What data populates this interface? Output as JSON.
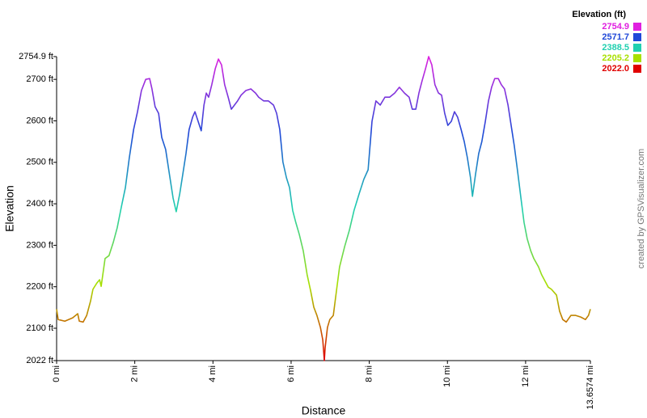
{
  "chart_data": {
    "type": "line",
    "y_label": "Elevation",
    "x_label": "Distance",
    "credit": "created by GPSVisualizer.com",
    "legend_title": "Elevation (ft)",
    "color_stops": [
      {
        "value": 2754.9,
        "color": "#e020e0"
      },
      {
        "value": 2571.7,
        "color": "#2048d8"
      },
      {
        "value": 2388.5,
        "color": "#20d0b0"
      },
      {
        "value": 2205.2,
        "color": "#a8e000"
      },
      {
        "value": 2022,
        "label": "2022.0",
        "color": "#e00000"
      }
    ],
    "xlim": [
      0,
      13.6574
    ],
    "ylim": [
      2022,
      2754.9
    ],
    "xticks": [
      {
        "value": 0,
        "label": "0 mi"
      },
      {
        "value": 2,
        "label": "2 mi"
      },
      {
        "value": 4,
        "label": "4 mi"
      },
      {
        "value": 6,
        "label": "6 mi"
      },
      {
        "value": 8,
        "label": "8 mi"
      },
      {
        "value": 10,
        "label": "10 mi"
      },
      {
        "value": 12,
        "label": "12 mi"
      },
      {
        "value": 13.6574,
        "label": "13.6574 mi"
      }
    ],
    "yticks": [
      {
        "value": 2022,
        "label": "2022 ft"
      },
      {
        "value": 2100,
        "label": "2100 ft"
      },
      {
        "value": 2200,
        "label": "2200 ft"
      },
      {
        "value": 2300,
        "label": "2300 ft"
      },
      {
        "value": 2400,
        "label": "2400 ft"
      },
      {
        "value": 2500,
        "label": "2500 ft"
      },
      {
        "value": 2600,
        "label": "2600 ft"
      },
      {
        "value": 2700,
        "label": "2700 ft"
      },
      {
        "value": 2754.9,
        "label": "2754.9 ft"
      }
    ],
    "grid": false,
    "x": [
      0,
      0.04,
      0.21,
      0.41,
      0.54,
      0.58,
      0.68,
      0.77,
      0.87,
      0.93,
      1.03,
      1.1,
      1.14,
      1.24,
      1.34,
      1.45,
      1.55,
      1.66,
      1.76,
      1.86,
      1.97,
      2.07,
      2.17,
      2.28,
      2.38,
      2.44,
      2.52,
      2.61,
      2.69,
      2.79,
      2.9,
      2.98,
      3.06,
      3.15,
      3.23,
      3.31,
      3.39,
      3.48,
      3.54,
      3.62,
      3.7,
      3.77,
      3.83,
      3.89,
      3.97,
      4.06,
      4.14,
      4.22,
      4.3,
      4.39,
      4.47,
      4.55,
      4.63,
      4.72,
      4.84,
      4.97,
      5.09,
      5.17,
      5.3,
      5.42,
      5.55,
      5.63,
      5.71,
      5.79,
      5.88,
      5.96,
      6.04,
      6.12,
      6.21,
      6.31,
      6.41,
      6.5,
      6.58,
      6.66,
      6.75,
      6.81,
      6.85,
      6.87,
      6.93,
      6.99,
      7.08,
      7.16,
      7.24,
      7.37,
      7.49,
      7.61,
      7.74,
      7.86,
      7.97,
      8.07,
      8.17,
      8.28,
      8.4,
      8.52,
      8.65,
      8.77,
      8.9,
      9.02,
      9.1,
      9.19,
      9.27,
      9.35,
      9.44,
      9.52,
      9.6,
      9.68,
      9.77,
      9.85,
      9.93,
      10.01,
      10.1,
      10.18,
      10.26,
      10.35,
      10.43,
      10.51,
      10.59,
      10.64,
      10.72,
      10.8,
      10.88,
      10.97,
      11.05,
      11.13,
      11.21,
      11.3,
      11.38,
      11.46,
      11.55,
      11.63,
      11.71,
      11.79,
      11.88,
      11.96,
      12.04,
      12.13,
      12.21,
      12.33,
      12.41,
      12.5,
      12.58,
      12.66,
      12.79,
      12.87,
      12.95,
      13.04,
      13.16,
      13.28,
      13.41,
      13.53,
      13.61,
      13.6574
    ],
    "series": [
      {
        "name": "Elevation",
        "values": [
          2146,
          2121,
          2117,
          2125,
          2135,
          2117,
          2115,
          2131,
          2166,
          2194,
          2209,
          2217,
          2201,
          2268,
          2275,
          2307,
          2342,
          2394,
          2439,
          2511,
          2579,
          2622,
          2673,
          2700,
          2702,
          2677,
          2634,
          2618,
          2560,
          2531,
          2463,
          2414,
          2381,
          2424,
          2472,
          2521,
          2579,
          2609,
          2622,
          2599,
          2576,
          2638,
          2667,
          2657,
          2687,
          2726,
          2749,
          2735,
          2687,
          2657,
          2628,
          2638,
          2648,
          2662,
          2673,
          2677,
          2667,
          2657,
          2648,
          2648,
          2638,
          2618,
          2579,
          2501,
          2463,
          2439,
          2384,
          2355,
          2326,
          2287,
          2229,
          2190,
          2151,
          2131,
          2102,
          2072,
          2022,
          2053,
          2102,
          2121,
          2131,
          2190,
          2248,
          2297,
          2336,
          2384,
          2424,
          2459,
          2482,
          2599,
          2648,
          2638,
          2657,
          2657,
          2667,
          2681,
          2667,
          2657,
          2628,
          2628,
          2667,
          2696,
          2726,
          2754.9,
          2735,
          2687,
          2667,
          2662,
          2618,
          2589,
          2599,
          2622,
          2609,
          2579,
          2550,
          2511,
          2463,
          2418,
          2472,
          2521,
          2550,
          2599,
          2648,
          2681,
          2702,
          2702,
          2687,
          2677,
          2638,
          2589,
          2540,
          2482,
          2414,
          2355,
          2316,
          2287,
          2268,
          2248,
          2229,
          2213,
          2199,
          2194,
          2180,
          2141,
          2121,
          2115,
          2131,
          2131,
          2127,
          2121,
          2131,
          2146
        ]
      }
    ]
  }
}
